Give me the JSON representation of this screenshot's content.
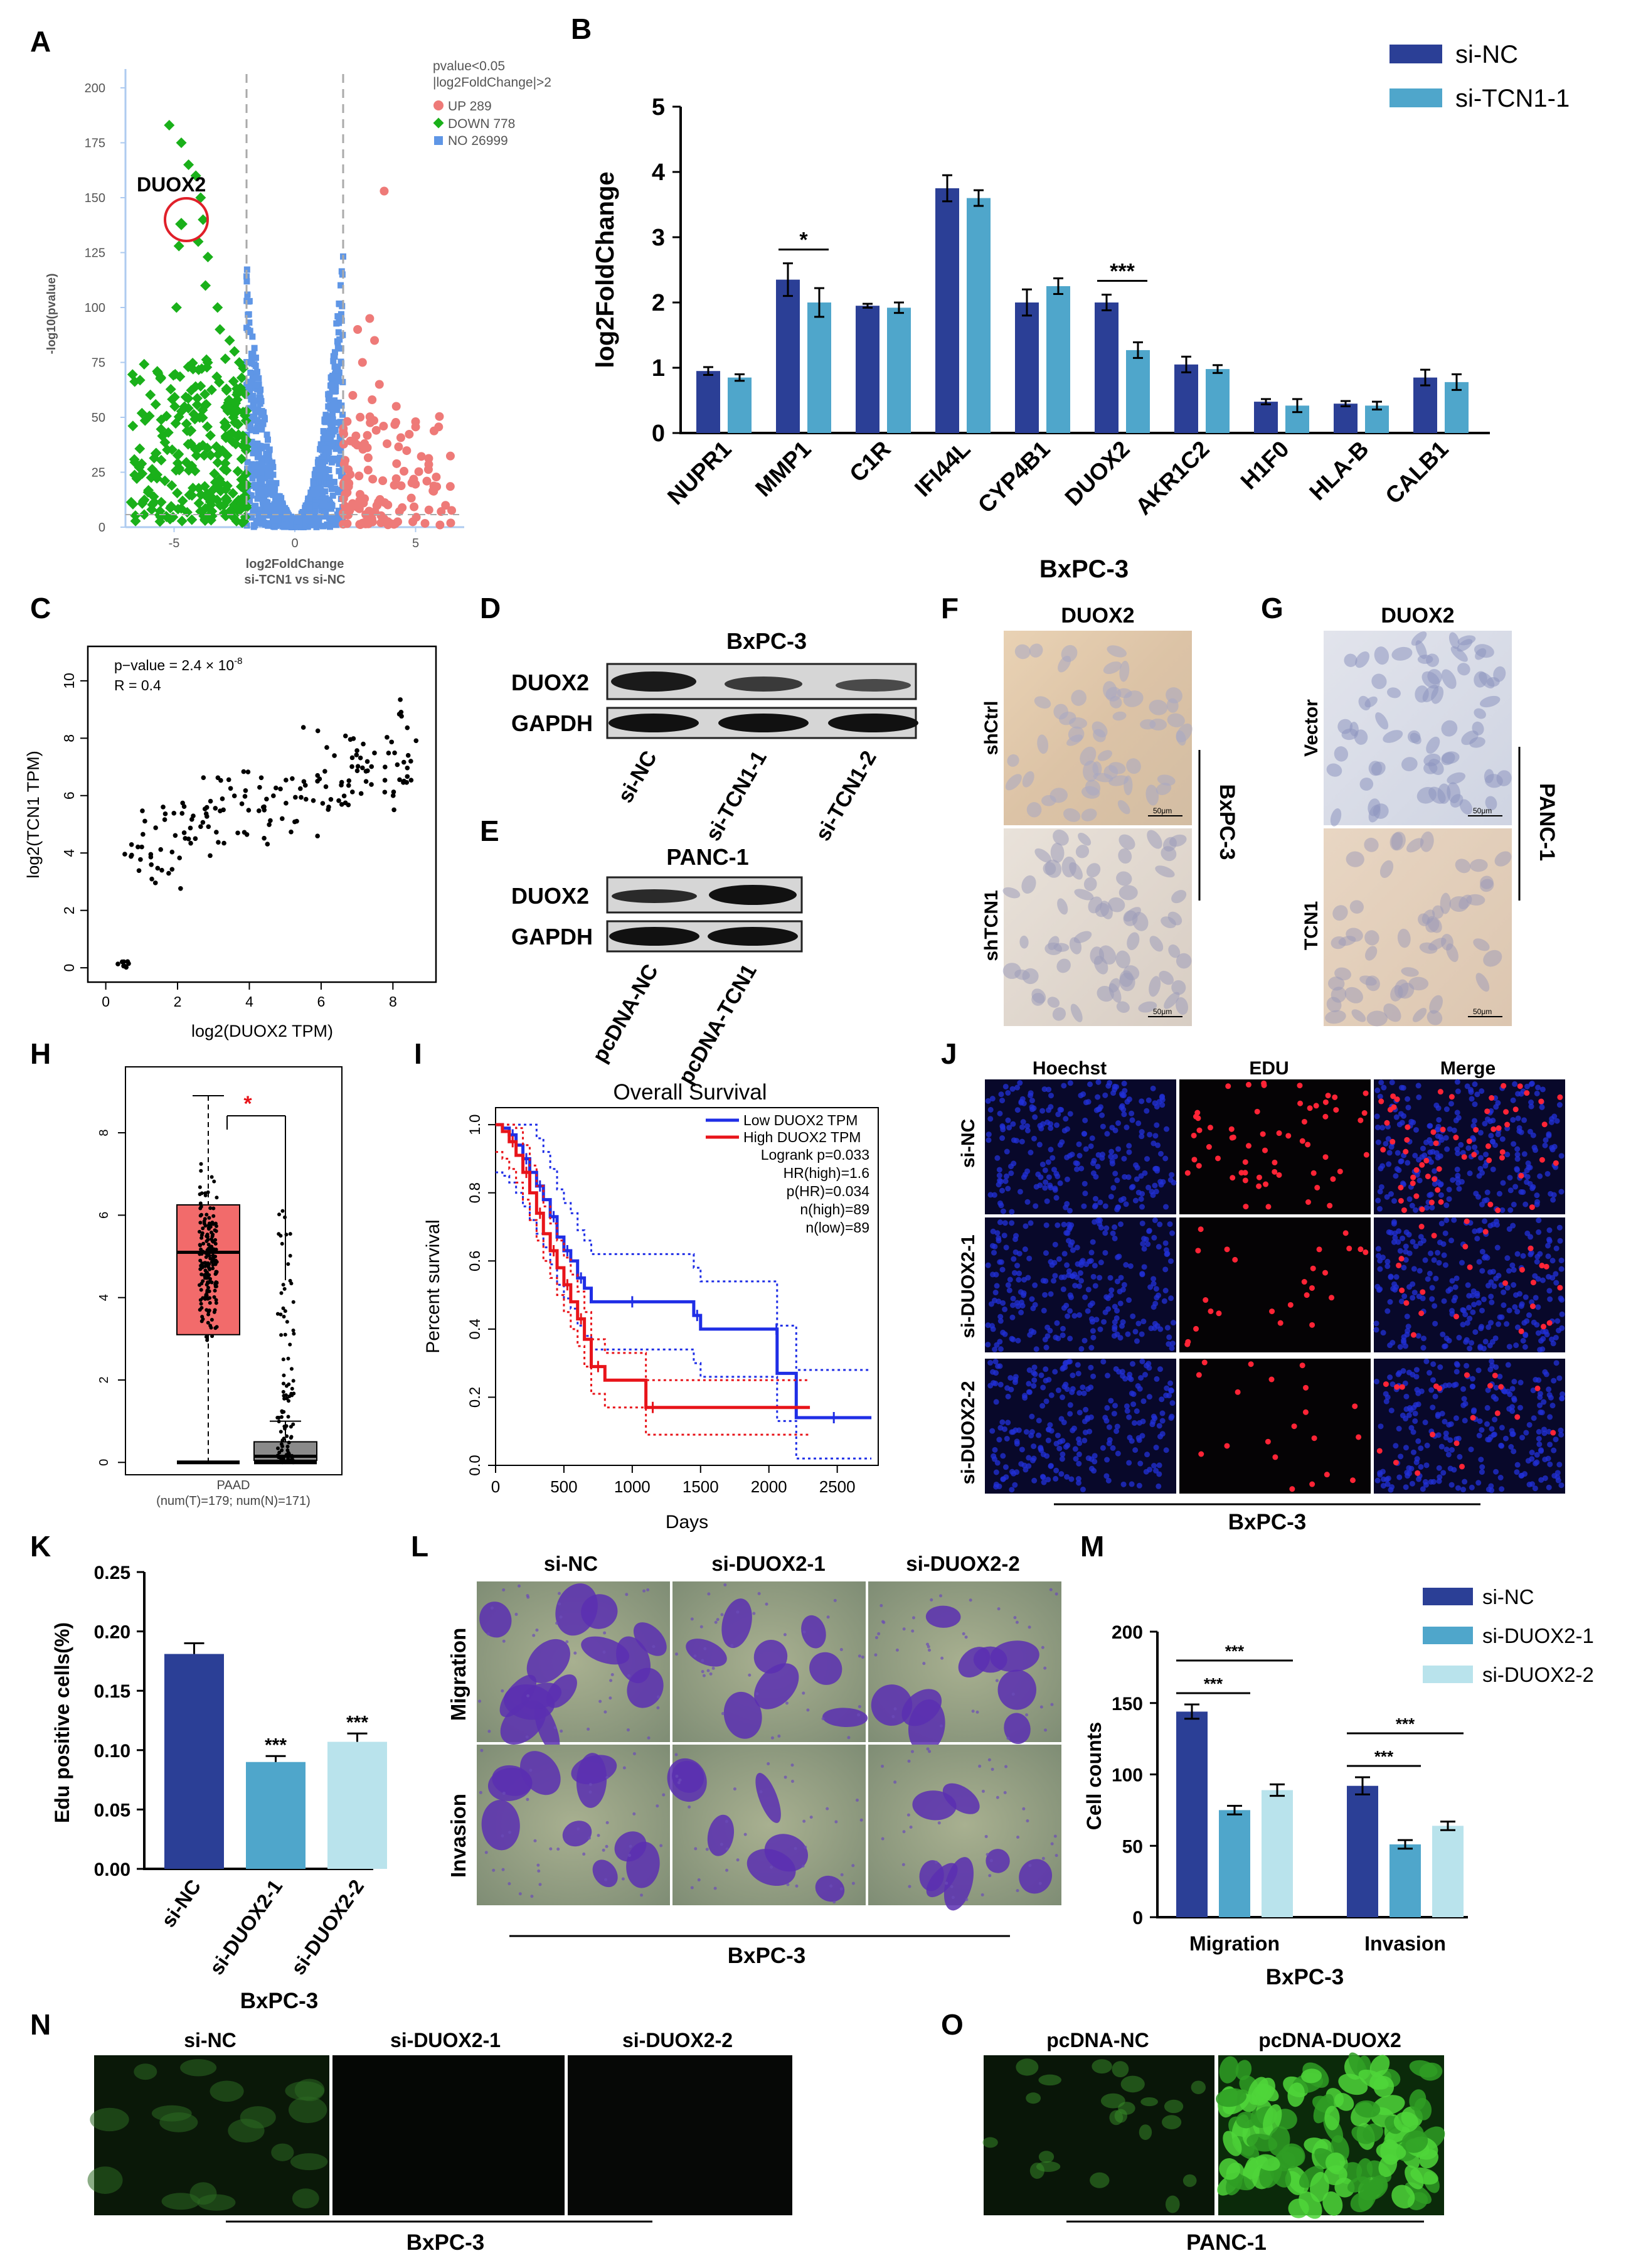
{
  "panel_labels": {
    "A": "A",
    "B": "B",
    "C": "C",
    "D": "D",
    "E": "E",
    "F": "F",
    "G": "G",
    "H": "H",
    "I": "I",
    "J": "J",
    "K": "K",
    "L": "L",
    "M": "M",
    "N": "N",
    "O": "O"
  },
  "colors": {
    "navy": "#2b3f96",
    "mid_blue": "#4fa6cb",
    "light_blue": "#b9e3ec",
    "volcano_up": "#ee7a78",
    "volcano_down": "#1ab01a",
    "volcano_no": "#5f96e6",
    "km_low": "#1f2ee6",
    "km_high": "#e8141a",
    "box_tumor": "#f26b6b",
    "box_normal": "#8a8a8a"
  },
  "panelA": {
    "legend_title_1": "pvalue<0.05",
    "legend_title_2": "|log2FoldChange|>2",
    "legend_up": "UP 289",
    "legend_down": "DOWN 778",
    "legend_no": "NO 26999",
    "gene_label": "DUOX2",
    "xlabel_1": "log2FoldChange",
    "xlabel_2": "si-TCN1 vs si-NC",
    "ylabel": "-log10(pvalue)",
    "chart_data": {
      "type": "scatter",
      "title": "Volcano plot si-TCN1 vs si-NC",
      "xlabel": "log2FoldChange",
      "ylabel": "-log10(pvalue)",
      "xlim": [
        -7.5,
        7.5
      ],
      "ylim": [
        0,
        200
      ],
      "x_ticks": [
        "-5",
        "0",
        "5"
      ],
      "y_ticks": [
        "0",
        "25",
        "50",
        "75",
        "100",
        "125",
        "150",
        "175",
        "200"
      ],
      "thresholds_x": [
        -2,
        2
      ],
      "groups": [
        {
          "name": "UP",
          "count": 289
        },
        {
          "name": "DOWN",
          "count": 778
        },
        {
          "name": "NO",
          "count": 26999
        }
      ],
      "highlight": {
        "label": "DUOX2",
        "x": -4.7,
        "y": 138
      }
    }
  },
  "panelB": {
    "xlabel": "BxPC-3",
    "chart_data": {
      "type": "bar",
      "title": "",
      "xlabel": "BxPC-3",
      "ylabel": "log2FoldChange",
      "ylim": [
        0,
        5
      ],
      "y_ticks": [
        "0",
        "1",
        "2",
        "3",
        "4",
        "5"
      ],
      "categories": [
        "NUPR1",
        "MMP1",
        "C1R",
        "IFI44L",
        "CYP4B1",
        "DUOX2",
        "AKR1C2",
        "H1F0",
        "HLA-B",
        "CALB1"
      ],
      "series": [
        {
          "name": "si-NC",
          "values": [
            0.95,
            2.35,
            1.95,
            3.75,
            2.0,
            2.0,
            1.05,
            0.48,
            0.45,
            0.85
          ],
          "errors": [
            0.06,
            0.25,
            0.03,
            0.2,
            0.2,
            0.12,
            0.12,
            0.04,
            0.04,
            0.12
          ]
        },
        {
          "name": "si-TCN1-1",
          "values": [
            0.85,
            2.0,
            1.92,
            3.6,
            2.25,
            1.27,
            0.98,
            0.42,
            0.42,
            0.78
          ],
          "errors": [
            0.05,
            0.22,
            0.08,
            0.12,
            0.12,
            0.12,
            0.06,
            0.1,
            0.06,
            0.12
          ]
        }
      ],
      "annotations": [
        {
          "category": "MMP1",
          "text": "*"
        },
        {
          "category": "DUOX2",
          "text": "***"
        }
      ]
    }
  },
  "panelC": {
    "stat_p": "p−value = 2.4 × 10",
    "stat_p_exp": "-8",
    "stat_r": "R = 0.4",
    "chart_data": {
      "type": "scatter",
      "xlabel": "log2(DUOX2 TPM)",
      "ylabel": "log2(TCN1 TPM)",
      "xlim": [
        -0.5,
        9.2
      ],
      "ylim": [
        -0.5,
        11.2
      ],
      "x_ticks": [
        "0",
        "2",
        "4",
        "6",
        "8"
      ],
      "y_ticks": [
        "0",
        "2",
        "4",
        "6",
        "8",
        "10"
      ],
      "n_points": 179,
      "p_value": "2.4e-8",
      "R": 0.4
    }
  },
  "panelD": {
    "cell_line": "BxPC-3",
    "rows": [
      "DUOX2",
      "GAPDH"
    ],
    "lanes": [
      "si-NC",
      "si-TCN1-1",
      "si-TCN1-2"
    ]
  },
  "panelE": {
    "cell_line": "PANC-1",
    "rows": [
      "DUOX2",
      "GAPDH"
    ],
    "lanes": [
      "pcDNA-NC",
      "pcDNA-TCN1"
    ]
  },
  "panelF": {
    "title": "DUOX2",
    "rows": [
      "shCtrl",
      "shTCN1"
    ],
    "side": "BxPC-3",
    "scale": "50μm"
  },
  "panelG": {
    "title": "DUOX2",
    "rows": [
      "Vector",
      "TCN1"
    ],
    "side": "PANC-1",
    "scale": "50μm"
  },
  "panelH": {
    "xlabel_1": "PAAD",
    "xlabel_2": "(num(T)=179; num(N)=171)",
    "sig": "*",
    "chart_data": {
      "type": "box",
      "ylim": [
        -0.3,
        9.6
      ],
      "y_ticks": [
        "0",
        "2",
        "4",
        "6",
        "8"
      ],
      "groups": [
        {
          "name": "T",
          "n": 179,
          "q1": 3.1,
          "median": 5.1,
          "q3": 6.25,
          "min": 0.0,
          "max": 8.9
        },
        {
          "name": "N",
          "n": 171,
          "q1": 0.05,
          "median": 0.15,
          "q3": 0.5,
          "min": 0.0,
          "max": 1.0
        }
      ]
    }
  },
  "panelI": {
    "chart_data": {
      "type": "line",
      "title": "Overall Survival",
      "xlabel": "Days",
      "ylabel": "Percent survival",
      "xlim": [
        0,
        2800
      ],
      "ylim": [
        0,
        1.05
      ],
      "x_ticks": [
        "0",
        "500",
        "1000",
        "1500",
        "2000",
        "2500"
      ],
      "y_ticks": [
        "0.0",
        "0.2",
        "0.4",
        "0.6",
        "0.8",
        "1.0"
      ],
      "legend": [
        "Low DUOX2 TPM",
        "High DUOX2 TPM"
      ],
      "stats": [
        "Logrank p=0.033",
        "HR(high)=1.6",
        "p(HR)=0.034",
        "n(high)=89",
        "n(low)=89"
      ],
      "series": [
        {
          "name": "Low DUOX2 TPM",
          "x": [
            0,
            50,
            100,
            150,
            200,
            250,
            300,
            350,
            400,
            450,
            500,
            550,
            600,
            650,
            700,
            1300,
            1450,
            1500,
            2050,
            2060,
            2200,
            2750
          ],
          "y": [
            1.0,
            0.99,
            0.97,
            0.94,
            0.9,
            0.86,
            0.82,
            0.78,
            0.73,
            0.67,
            0.63,
            0.6,
            0.55,
            0.52,
            0.48,
            0.48,
            0.44,
            0.4,
            0.4,
            0.27,
            0.14,
            0.14
          ]
        },
        {
          "name": "High DUOX2 TPM",
          "x": [
            0,
            50,
            100,
            150,
            200,
            250,
            300,
            350,
            400,
            450,
            500,
            550,
            600,
            650,
            700,
            800,
            1100,
            1200,
            2300
          ],
          "y": [
            1.0,
            0.98,
            0.95,
            0.91,
            0.86,
            0.8,
            0.74,
            0.68,
            0.63,
            0.58,
            0.53,
            0.48,
            0.43,
            0.37,
            0.29,
            0.25,
            0.17,
            0.17,
            0.17
          ]
        }
      ]
    }
  },
  "panelJ": {
    "cols": [
      "Hoechst",
      "EDU",
      "Merge"
    ],
    "rows": [
      "si-NC",
      "si-DUOX2-1",
      "si-DUOX2-2"
    ],
    "cell_line": "BxPC-3"
  },
  "panelK": {
    "cell_line": "BxPC-3",
    "chart_data": {
      "type": "bar",
      "ylabel": "Edu positive cells(%)",
      "ylim": [
        0,
        0.25
      ],
      "y_ticks": [
        "0.00",
        "0.05",
        "0.10",
        "0.15",
        "0.20",
        "0.25"
      ],
      "categories": [
        "si-NC",
        "si-DUOX2-1",
        "si-DUOX2-2"
      ],
      "values": [
        0.181,
        0.09,
        0.107
      ],
      "errors": [
        0.009,
        0.005,
        0.007
      ],
      "annotations": [
        "",
        "***",
        "***"
      ]
    }
  },
  "panelL": {
    "cols": [
      "si-NC",
      "si-DUOX2-1",
      "si-DUOX2-2"
    ],
    "rows": [
      "Migration",
      "Invasion"
    ],
    "cell_line": "BxPC-3"
  },
  "panelM": {
    "cell_line": "BxPC-3",
    "chart_data": {
      "type": "bar",
      "ylabel": "Cell counts",
      "ylim": [
        0,
        200
      ],
      "y_ticks": [
        "0",
        "50",
        "100",
        "150",
        "200"
      ],
      "categories": [
        "Migration",
        "Invasion"
      ],
      "series": [
        {
          "name": "si-NC",
          "values": [
            144,
            92
          ],
          "errors": [
            5,
            6
          ]
        },
        {
          "name": "si-DUOX2-1",
          "values": [
            75,
            51
          ],
          "errors": [
            3,
            3
          ]
        },
        {
          "name": "si-DUOX2-2",
          "values": [
            89,
            64
          ],
          "errors": [
            4,
            3
          ]
        }
      ],
      "annotations": [
        "***",
        "***",
        "***",
        "***"
      ]
    }
  },
  "panelN": {
    "cols": [
      "si-NC",
      "si-DUOX2-1",
      "si-DUOX2-2"
    ],
    "cell_line": "BxPC-3"
  },
  "panelO": {
    "cols": [
      "pcDNA-NC",
      "pcDNA-DUOX2"
    ],
    "cell_line": "PANC-1"
  }
}
